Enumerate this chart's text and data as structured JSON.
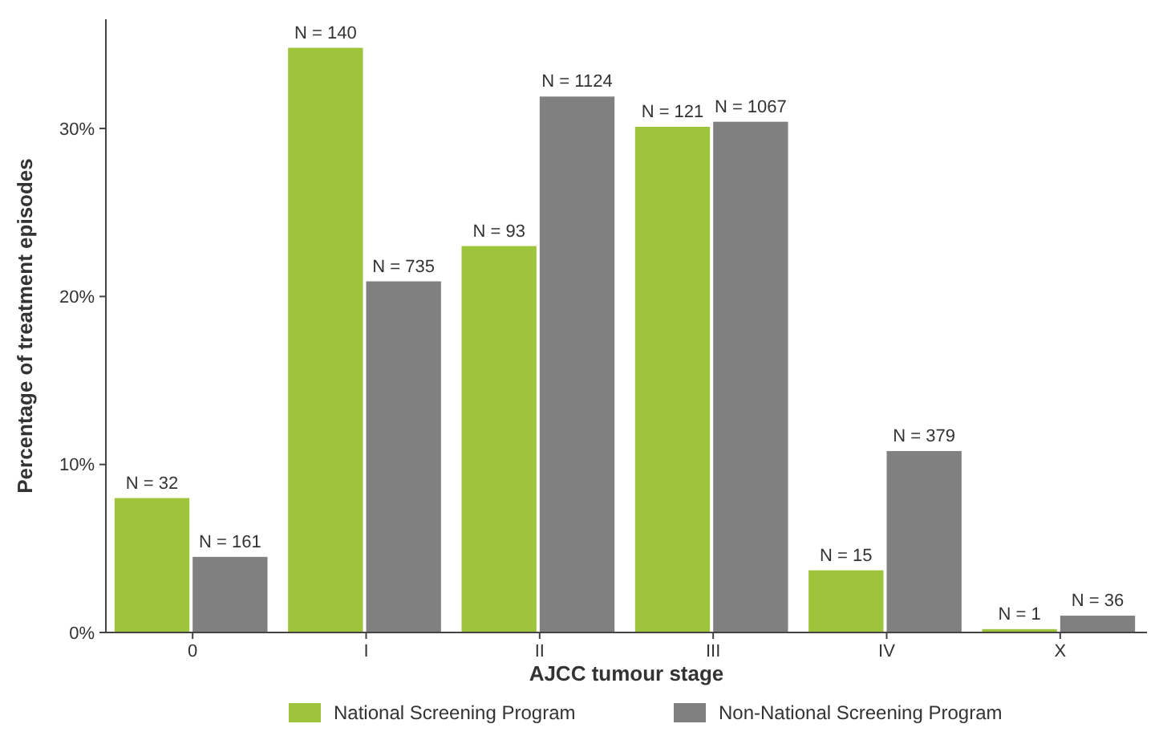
{
  "chart_data": {
    "type": "bar",
    "xlabel": "AJCC tumour stage",
    "ylabel": "Percentage of treatment episodes",
    "categories": [
      "0",
      "I",
      "II",
      "III",
      "IV",
      "X"
    ],
    "series": [
      {
        "name": "National Screening Program",
        "color": "#9dc43a",
        "values": [
          8.0,
          34.8,
          23.0,
          30.1,
          3.7,
          0.2
        ]
      },
      {
        "name": "Non-National Screening Program",
        "color": "#808080",
        "values": [
          4.5,
          20.9,
          31.9,
          30.4,
          10.8,
          1.0
        ]
      }
    ],
    "annotations": [
      {
        "text": "N = 32",
        "x": "0",
        "y": 8.0
      },
      {
        "text": "N = 140",
        "x": "I",
        "y": 34.8
      },
      {
        "text": "N = 93",
        "x": "II",
        "y": 23.0
      },
      {
        "text": "N = 121",
        "x": "III",
        "y": 30.1
      },
      {
        "text": "N = 15",
        "x": "IV",
        "y": 3.7
      },
      {
        "text": "N = 1",
        "x": "X",
        "y": 0.2
      },
      {
        "text": "N = 161",
        "x": "0",
        "y": 4.5
      },
      {
        "text": "N = 735",
        "x": "I",
        "y": 20.9
      },
      {
        "text": "N = 1124",
        "x": "II",
        "y": 31.9
      },
      {
        "text": "N = 1067",
        "x": "III",
        "y": 30.4
      },
      {
        "text": "N = 379",
        "x": "IV",
        "y": 10.8
      },
      {
        "text": "N = 36",
        "x": "X",
        "y": 1.0
      }
    ],
    "ylim": [
      0,
      36.5
    ],
    "yticks": [
      {
        "value": 0,
        "label": "0%"
      },
      {
        "value": 10,
        "label": "10%"
      },
      {
        "value": 20,
        "label": "20%"
      },
      {
        "value": 30,
        "label": "30%"
      }
    ],
    "grid": false,
    "legend": "bottom"
  }
}
